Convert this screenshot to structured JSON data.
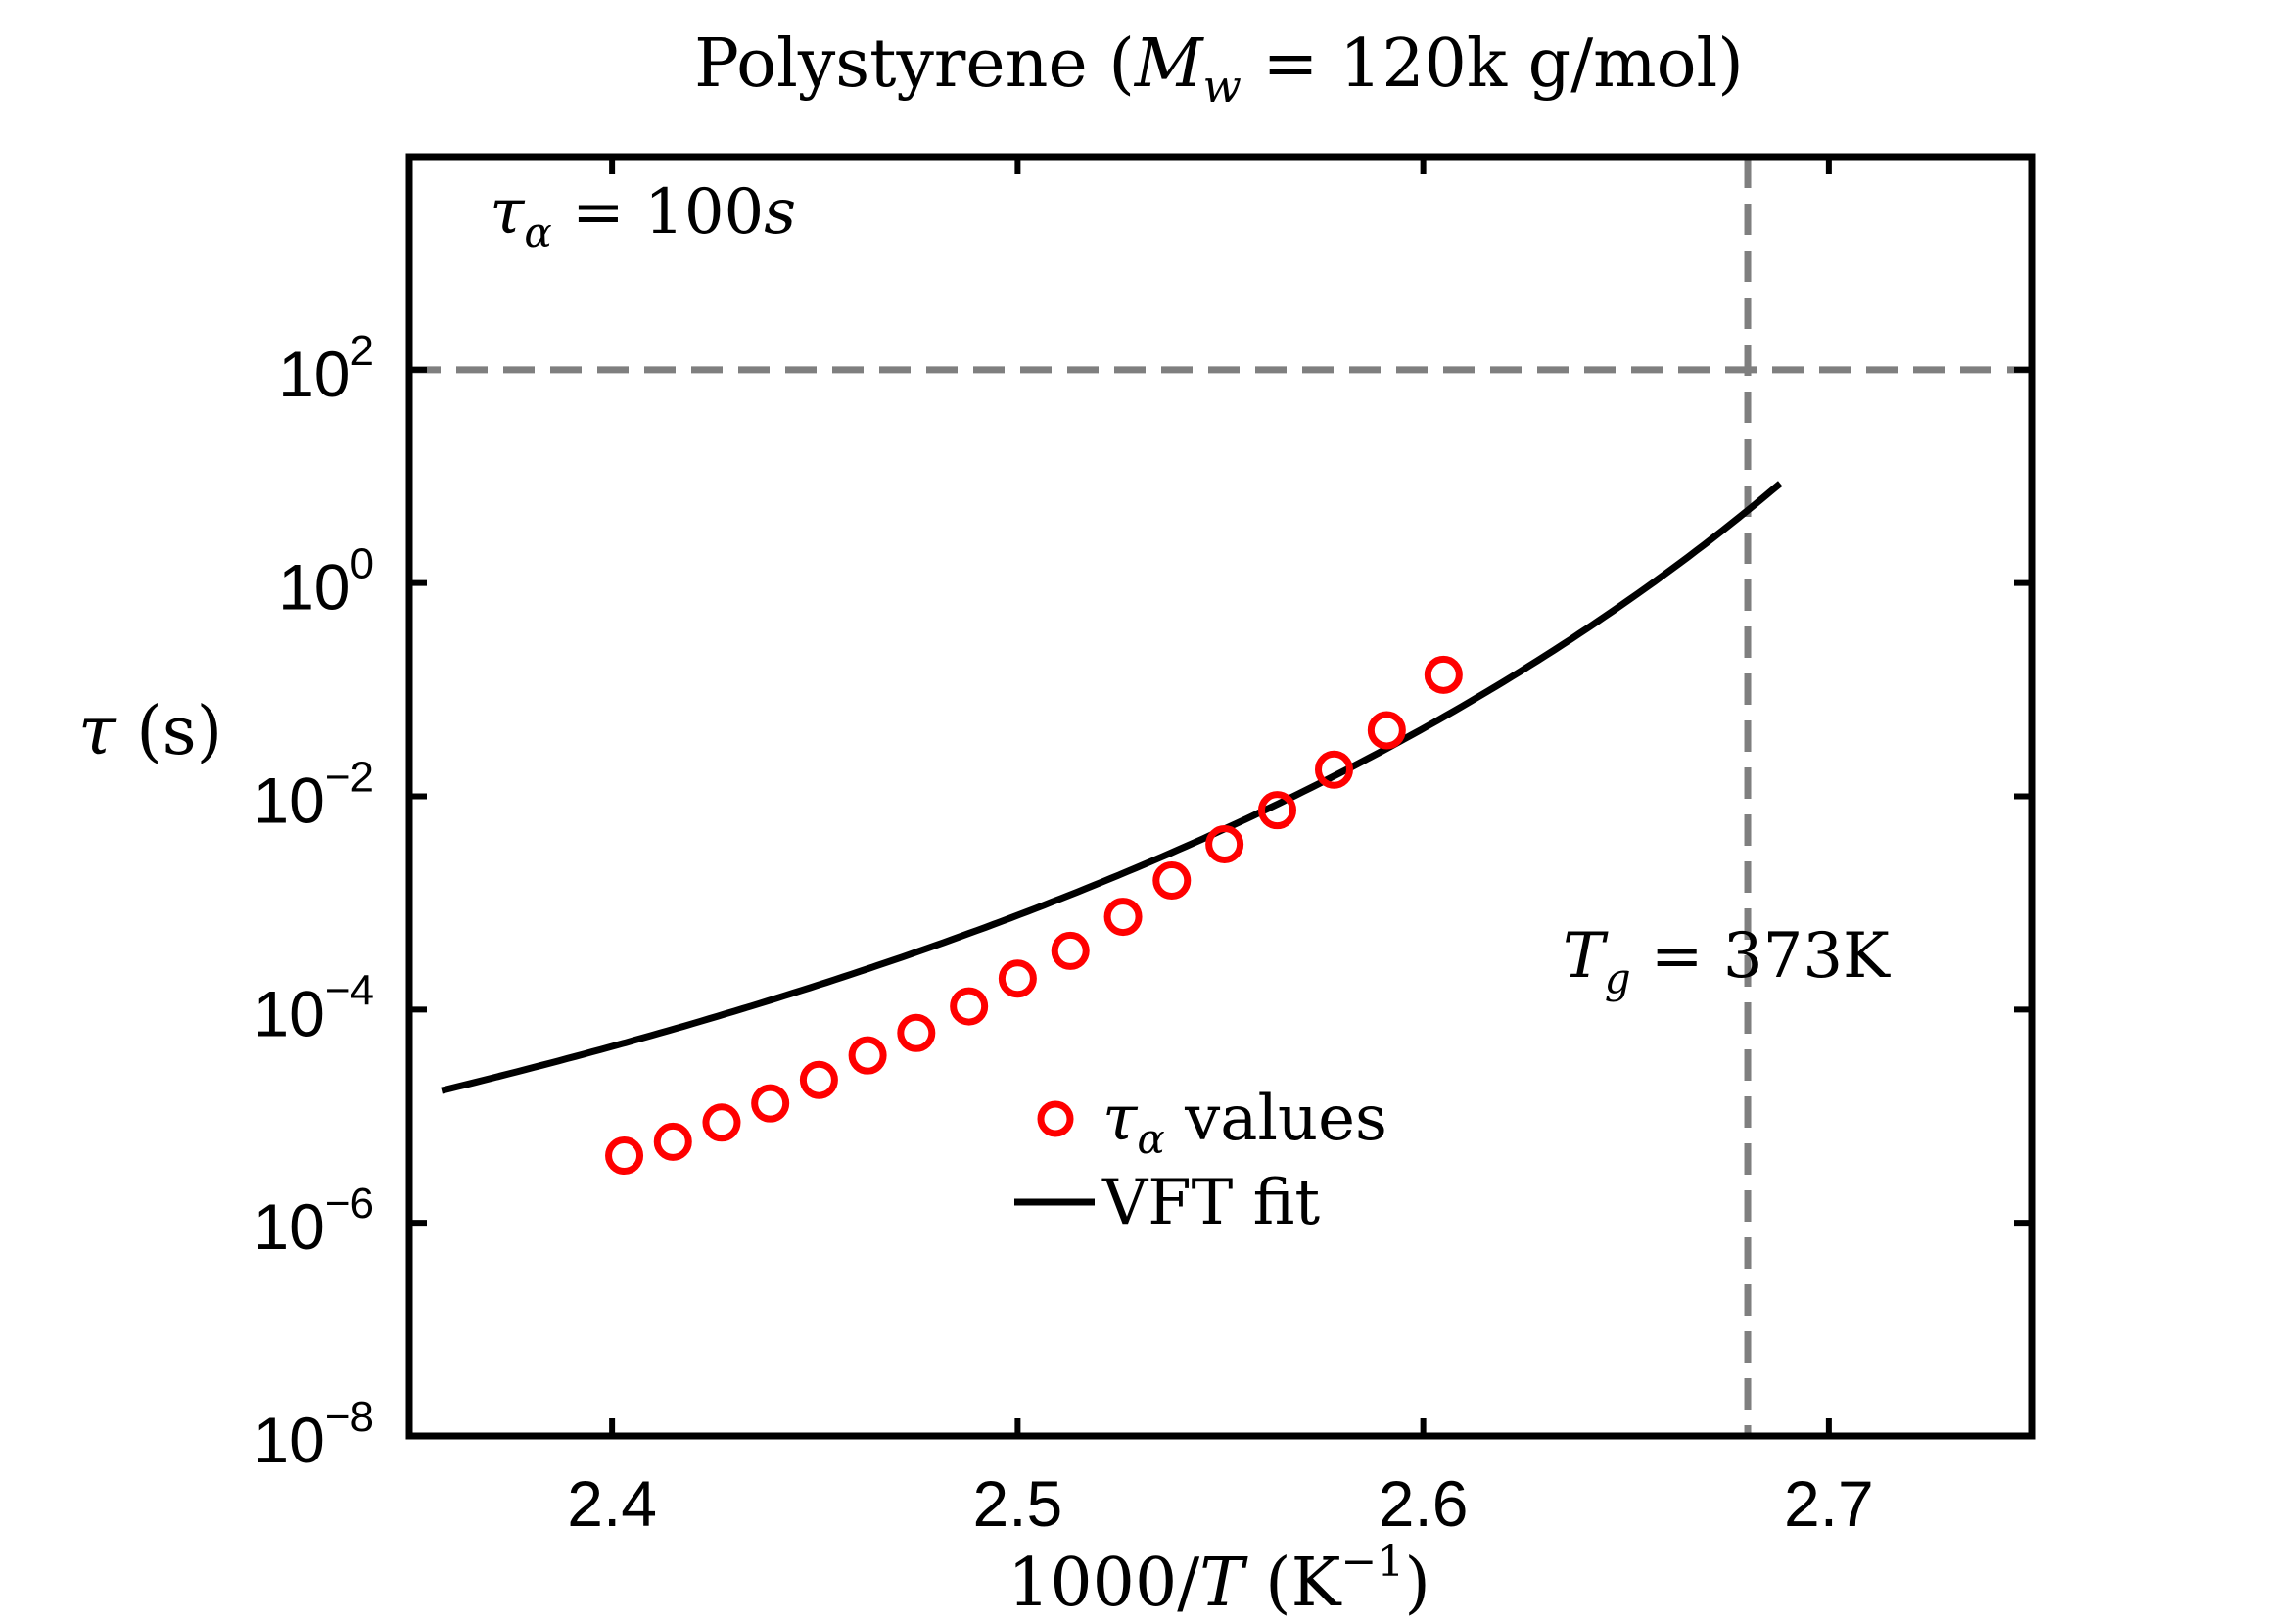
{
  "chart_data": {
    "type": "scatter",
    "title": {
      "prefix": "Polystyrene (",
      "var": "M",
      "var_sub": "w",
      "suffix": " = 120k g/mol)"
    },
    "xlabel": {
      "prefix": "1000/",
      "var": "T",
      "mid": " (K",
      "sup": "−1",
      "suffix": ")"
    },
    "ylabel": {
      "var": "τ",
      "suffix": " (s)"
    },
    "xlim": [
      2.35,
      2.75
    ],
    "ylim_log10": [
      -8,
      4
    ],
    "y_scale": "log",
    "xticks": [
      {
        "value": 2.4,
        "label": "2.4"
      },
      {
        "value": 2.5,
        "label": "2.5"
      },
      {
        "value": 2.6,
        "label": "2.6"
      },
      {
        "value": 2.7,
        "label": "2.7"
      }
    ],
    "yticks": [
      {
        "exp": 2,
        "base": "10",
        "sup": "2"
      },
      {
        "exp": 0,
        "base": "10",
        "sup": "0"
      },
      {
        "exp": -2,
        "base": "10",
        "sup": "−2"
      },
      {
        "exp": -4,
        "base": "10",
        "sup": "−4"
      },
      {
        "exp": -6,
        "base": "10",
        "sup": "−6"
      },
      {
        "exp": -8,
        "base": "10",
        "sup": "−8"
      }
    ],
    "grid": false,
    "legend_position": "lower-center",
    "series": [
      {
        "name": {
          "var": "τ",
          "sub": "α",
          "suffix": " values"
        },
        "type": "scatter",
        "marker": "open-circle",
        "color": "#ff0000",
        "points": [
          {
            "x": 2.403,
            "log10_y": -5.37
          },
          {
            "x": 2.415,
            "log10_y": -5.24
          },
          {
            "x": 2.427,
            "log10_y": -5.06
          },
          {
            "x": 2.439,
            "log10_y": -4.88
          },
          {
            "x": 2.451,
            "log10_y": -4.66
          },
          {
            "x": 2.463,
            "log10_y": -4.43
          },
          {
            "x": 2.475,
            "log10_y": -4.22
          },
          {
            "x": 2.488,
            "log10_y": -3.97
          },
          {
            "x": 2.5,
            "log10_y": -3.71
          },
          {
            "x": 2.513,
            "log10_y": -3.45
          },
          {
            "x": 2.526,
            "log10_y": -3.13
          },
          {
            "x": 2.538,
            "log10_y": -2.79
          },
          {
            "x": 2.551,
            "log10_y": -2.45
          },
          {
            "x": 2.564,
            "log10_y": -2.13
          },
          {
            "x": 2.578,
            "log10_y": -1.75
          },
          {
            "x": 2.591,
            "log10_y": -1.38
          },
          {
            "x": 2.605,
            "log10_y": -0.86
          }
        ]
      },
      {
        "name": {
          "text": "VFT fit"
        },
        "type": "line",
        "color": "#000000",
        "fit": {
          "model": "VFT",
          "log10_tau0": -9.84,
          "B_K": 1152.4,
          "T0_K": 325.57,
          "x_range": [
            2.358,
            2.688
          ]
        }
      }
    ],
    "reference_lines": [
      {
        "orientation": "horizontal",
        "log10_y": 2,
        "color": "#7f7f7f",
        "label": {
          "var": "τ",
          "sub": "α",
          "eq": " = 100",
          "var2": "s"
        }
      },
      {
        "orientation": "vertical",
        "x": 2.68,
        "color": "#7f7f7f",
        "label": {
          "var": "T",
          "sub": "g",
          "eq": " = 373K"
        }
      }
    ]
  }
}
